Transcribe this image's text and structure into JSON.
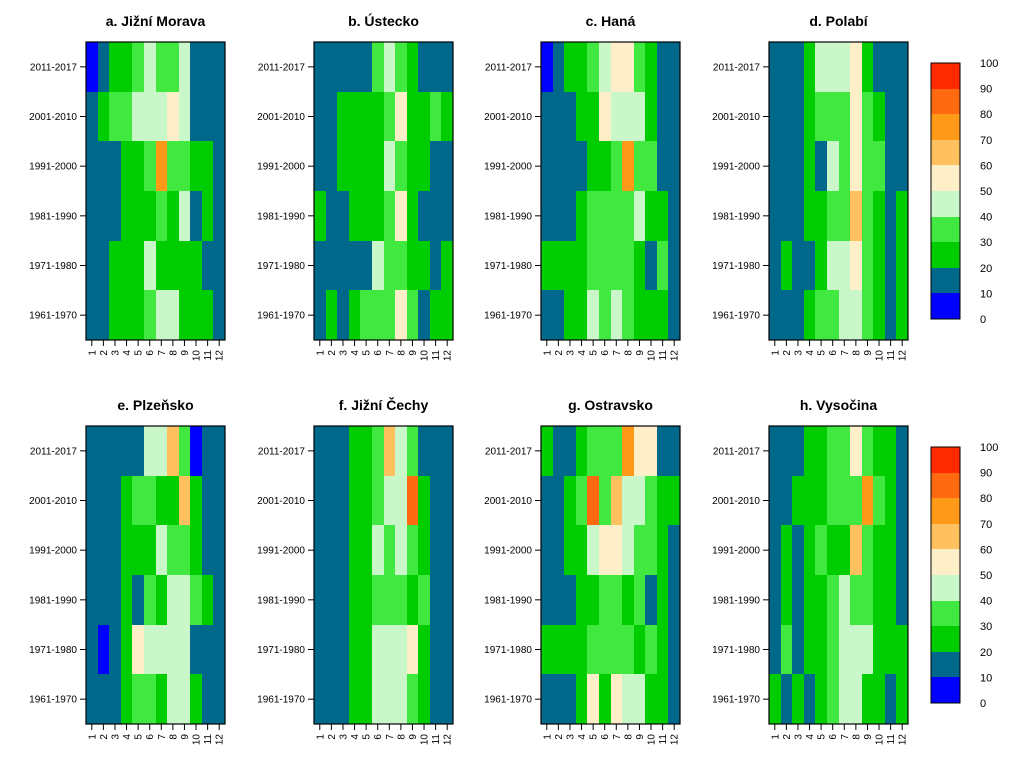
{
  "chart_data": {
    "type": "heatmap",
    "x_ticks": [
      "1",
      "2",
      "3",
      "4",
      "5",
      "6",
      "7",
      "8",
      "9",
      "10",
      "11",
      "12"
    ],
    "y_ticks": [
      "2011-2017",
      "2001-2010",
      "1991-2000",
      "1981-1990",
      "1971-1980",
      "1961-1970"
    ],
    "legend": {
      "breaks": [
        0,
        10,
        20,
        30,
        40,
        50,
        60,
        70,
        80,
        90,
        100
      ],
      "labels": [
        "0",
        "10",
        "20",
        "30",
        "40",
        "50",
        "60",
        "70",
        "80",
        "90",
        "100"
      ],
      "colors": [
        "#0000ff",
        "#00688b",
        "#00cd00",
        "#40e840",
        "#c9f7c9",
        "#ffefc8",
        "#ffc060",
        "#ff9a18",
        "#ff6a10",
        "#ff2a00"
      ]
    },
    "panels": [
      {
        "title": "a. Jižní Morava",
        "values": [
          [
            5,
            15,
            25,
            25,
            35,
            45,
            35,
            35,
            45,
            15,
            15,
            15
          ],
          [
            15,
            25,
            35,
            35,
            45,
            45,
            45,
            55,
            45,
            15,
            15,
            15
          ],
          [
            15,
            15,
            15,
            25,
            25,
            35,
            75,
            35,
            35,
            25,
            25,
            15
          ],
          [
            15,
            15,
            15,
            25,
            25,
            25,
            35,
            25,
            45,
            15,
            25,
            15
          ],
          [
            15,
            15,
            25,
            25,
            25,
            45,
            25,
            25,
            25,
            25,
            15,
            15
          ],
          [
            15,
            15,
            25,
            25,
            25,
            35,
            45,
            45,
            25,
            25,
            25,
            15
          ]
        ]
      },
      {
        "title": "b. Ústecko",
        "values": [
          [
            15,
            15,
            15,
            15,
            15,
            35,
            45,
            35,
            25,
            15,
            15,
            15
          ],
          [
            15,
            15,
            25,
            25,
            25,
            25,
            35,
            55,
            25,
            25,
            35,
            25
          ],
          [
            15,
            15,
            25,
            25,
            25,
            25,
            45,
            35,
            25,
            25,
            15,
            15
          ],
          [
            25,
            15,
            15,
            25,
            25,
            25,
            35,
            55,
            25,
            15,
            15,
            15
          ],
          [
            15,
            15,
            15,
            15,
            15,
            45,
            35,
            35,
            25,
            25,
            15,
            25
          ],
          [
            15,
            25,
            15,
            25,
            35,
            35,
            35,
            55,
            35,
            15,
            25,
            25
          ]
        ]
      },
      {
        "title": "c. Haná",
        "values": [
          [
            5,
            15,
            25,
            25,
            35,
            45,
            55,
            55,
            35,
            25,
            15,
            15
          ],
          [
            15,
            15,
            15,
            25,
            25,
            55,
            45,
            45,
            45,
            25,
            15,
            15
          ],
          [
            15,
            15,
            15,
            15,
            25,
            25,
            35,
            75,
            35,
            35,
            15,
            15
          ],
          [
            15,
            15,
            15,
            25,
            35,
            35,
            35,
            35,
            45,
            25,
            25,
            15
          ],
          [
            25,
            25,
            25,
            25,
            35,
            35,
            35,
            35,
            25,
            15,
            35,
            15
          ],
          [
            15,
            15,
            25,
            25,
            45,
            35,
            45,
            35,
            25,
            25,
            25,
            15
          ]
        ]
      },
      {
        "title": "d. Polabí",
        "values": [
          [
            15,
            15,
            15,
            25,
            45,
            45,
            45,
            55,
            25,
            15,
            15,
            15
          ],
          [
            15,
            15,
            15,
            25,
            35,
            35,
            35,
            55,
            35,
            25,
            15,
            15
          ],
          [
            15,
            15,
            15,
            25,
            15,
            45,
            35,
            55,
            35,
            35,
            15,
            15
          ],
          [
            15,
            15,
            15,
            25,
            25,
            35,
            35,
            65,
            35,
            25,
            15,
            25
          ],
          [
            15,
            25,
            15,
            15,
            25,
            45,
            45,
            55,
            35,
            25,
            15,
            25
          ],
          [
            15,
            15,
            15,
            25,
            35,
            35,
            45,
            45,
            35,
            25,
            15,
            25
          ]
        ]
      },
      {
        "title": "e. Plzeňsko",
        "values": [
          [
            15,
            15,
            15,
            15,
            15,
            45,
            45,
            65,
            35,
            5,
            15,
            15
          ],
          [
            15,
            15,
            15,
            25,
            35,
            35,
            25,
            25,
            65,
            25,
            15,
            15
          ],
          [
            15,
            15,
            15,
            25,
            25,
            25,
            45,
            35,
            35,
            25,
            15,
            15
          ],
          [
            15,
            15,
            15,
            25,
            15,
            35,
            25,
            45,
            45,
            35,
            25,
            15
          ],
          [
            15,
            5,
            15,
            25,
            55,
            45,
            45,
            45,
            45,
            15,
            15,
            15
          ],
          [
            15,
            15,
            15,
            25,
            35,
            35,
            25,
            45,
            45,
            25,
            15,
            15
          ]
        ]
      },
      {
        "title": "f. Jižní Čechy",
        "values": [
          [
            15,
            15,
            15,
            25,
            25,
            35,
            65,
            45,
            35,
            15,
            15,
            15
          ],
          [
            15,
            15,
            15,
            25,
            25,
            35,
            45,
            45,
            85,
            25,
            15,
            15
          ],
          [
            15,
            15,
            15,
            25,
            25,
            45,
            35,
            45,
            35,
            25,
            15,
            15
          ],
          [
            15,
            15,
            15,
            25,
            25,
            35,
            35,
            35,
            25,
            35,
            15,
            15
          ],
          [
            15,
            15,
            15,
            25,
            25,
            45,
            45,
            45,
            55,
            25,
            15,
            15
          ],
          [
            15,
            15,
            15,
            25,
            25,
            45,
            45,
            45,
            35,
            25,
            15,
            15
          ]
        ]
      },
      {
        "title": "g. Ostravsko",
        "values": [
          [
            25,
            15,
            15,
            25,
            35,
            35,
            35,
            75,
            55,
            55,
            15,
            15
          ],
          [
            15,
            15,
            25,
            35,
            85,
            35,
            65,
            45,
            45,
            35,
            25,
            25
          ],
          [
            15,
            15,
            25,
            25,
            45,
            55,
            55,
            45,
            35,
            35,
            25,
            15
          ],
          [
            15,
            15,
            15,
            25,
            25,
            35,
            35,
            25,
            35,
            15,
            25,
            15
          ],
          [
            25,
            25,
            25,
            25,
            35,
            35,
            35,
            35,
            25,
            35,
            25,
            15
          ],
          [
            15,
            15,
            15,
            25,
            55,
            25,
            55,
            45,
            45,
            25,
            25,
            15
          ]
        ]
      },
      {
        "title": "h. Vysočina",
        "values": [
          [
            15,
            15,
            15,
            25,
            25,
            35,
            35,
            55,
            35,
            25,
            25,
            15
          ],
          [
            15,
            15,
            25,
            25,
            25,
            35,
            35,
            35,
            75,
            35,
            25,
            15
          ],
          [
            15,
            25,
            15,
            25,
            35,
            25,
            25,
            65,
            35,
            25,
            25,
            15
          ],
          [
            15,
            25,
            15,
            25,
            25,
            35,
            45,
            35,
            35,
            25,
            25,
            15
          ],
          [
            15,
            35,
            15,
            25,
            25,
            35,
            45,
            45,
            45,
            25,
            25,
            25
          ],
          [
            25,
            15,
            25,
            15,
            25,
            35,
            45,
            45,
            25,
            25,
            15,
            25
          ]
        ]
      }
    ]
  }
}
